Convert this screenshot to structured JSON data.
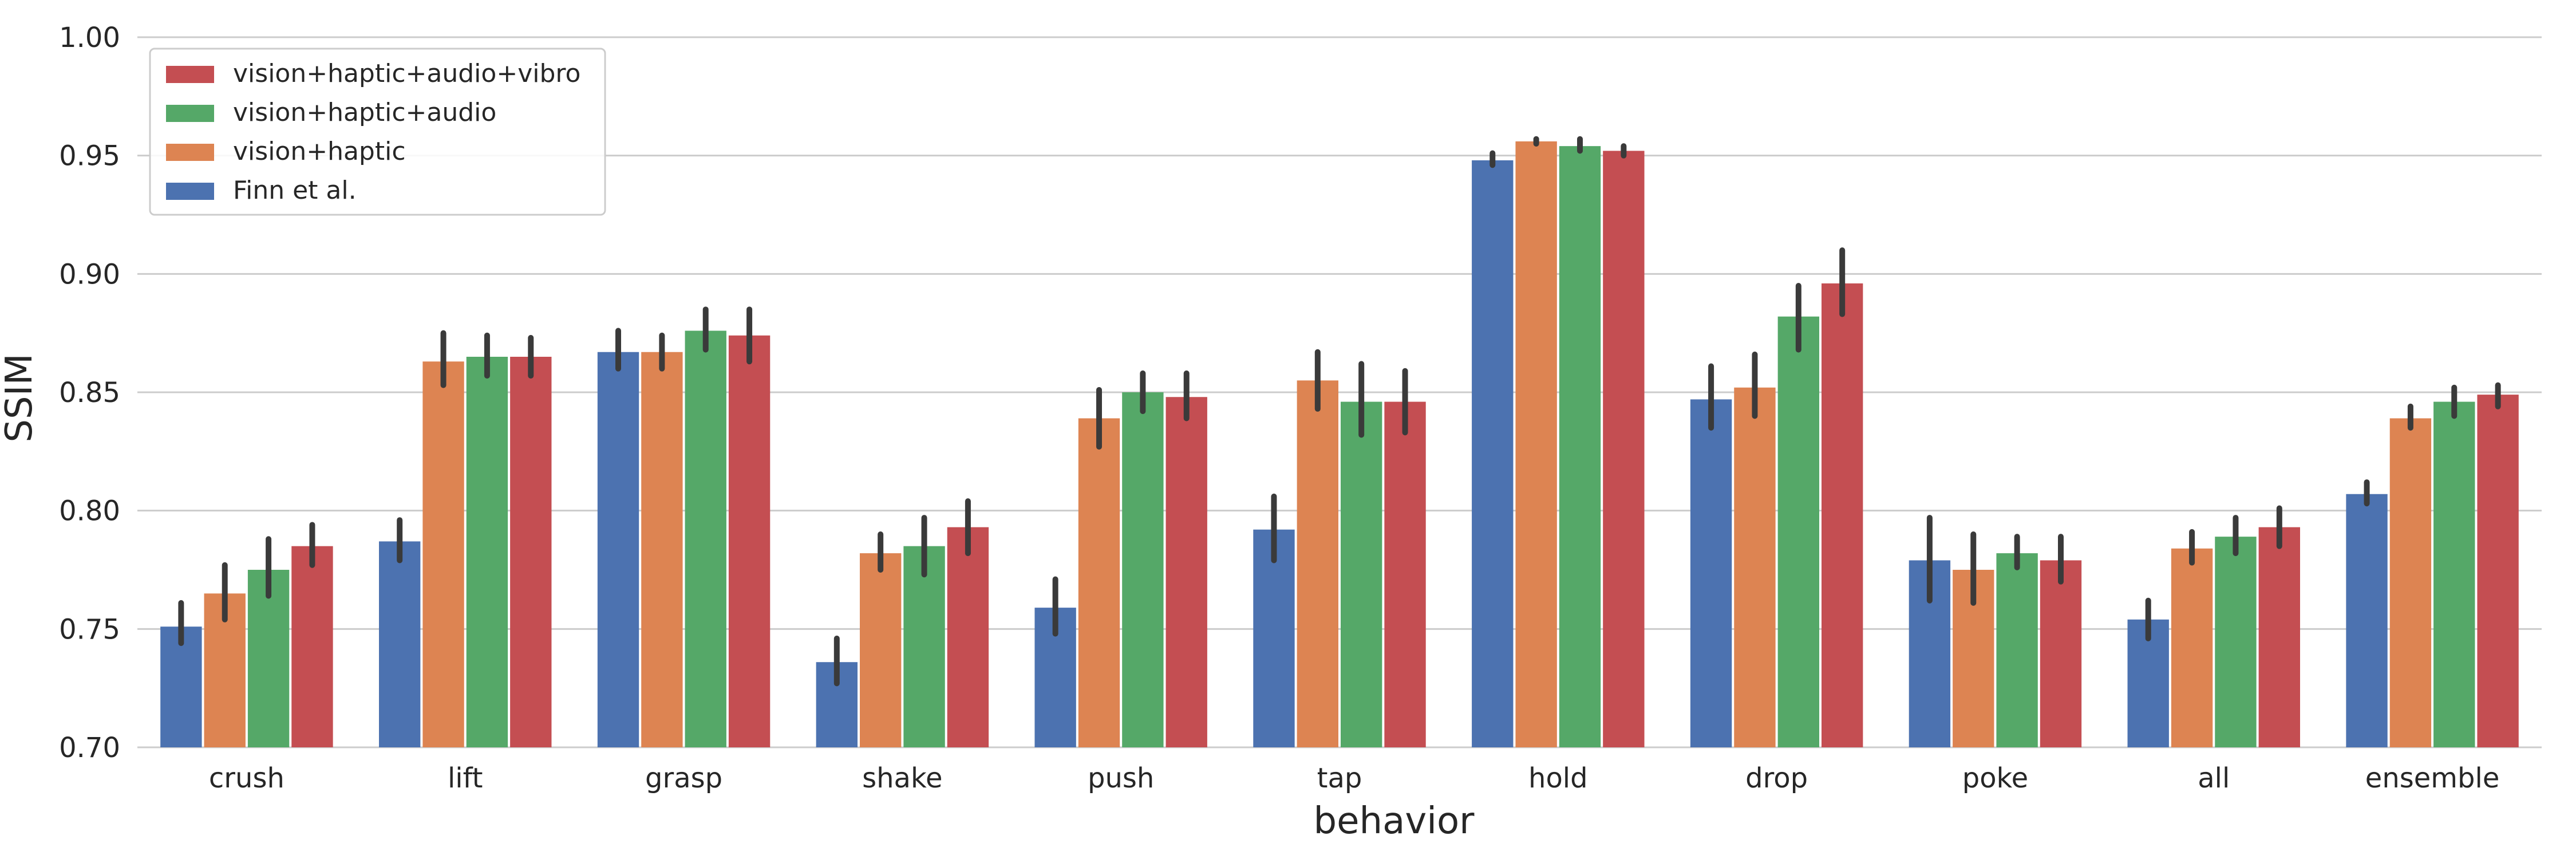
{
  "chart_data": {
    "type": "bar",
    "title": "",
    "xlabel": "behavior",
    "ylabel": "SSIM",
    "ylim": [
      0.7,
      1.0
    ],
    "yticks": [
      0.7,
      0.75,
      0.8,
      0.85,
      0.9,
      0.95,
      1.0
    ],
    "ytick_labels": [
      "0.70",
      "0.75",
      "0.80",
      "0.85",
      "0.90",
      "0.95",
      "1.00"
    ],
    "grid": "horizontal",
    "legend_position": "top-left",
    "categories": [
      "crush",
      "lift",
      "grasp",
      "shake",
      "push",
      "tap",
      "hold",
      "drop",
      "poke",
      "all",
      "ensemble"
    ],
    "series": [
      {
        "name": "Finn et al.",
        "color": "#4c72b0",
        "values": [
          0.751,
          0.787,
          0.867,
          0.736,
          0.759,
          0.792,
          0.948,
          0.847,
          0.779,
          0.754,
          0.807
        ],
        "error_low": [
          0.744,
          0.779,
          0.86,
          0.727,
          0.748,
          0.779,
          0.946,
          0.835,
          0.762,
          0.746,
          0.803
        ],
        "error_high": [
          0.761,
          0.796,
          0.876,
          0.746,
          0.771,
          0.806,
          0.951,
          0.861,
          0.797,
          0.762,
          0.812
        ]
      },
      {
        "name": "vision+haptic",
        "color": "#dd8452",
        "values": [
          0.765,
          0.863,
          0.867,
          0.782,
          0.839,
          0.855,
          0.956,
          0.852,
          0.775,
          0.784,
          0.839
        ],
        "error_low": [
          0.754,
          0.853,
          0.86,
          0.775,
          0.827,
          0.843,
          0.955,
          0.84,
          0.761,
          0.778,
          0.835
        ],
        "error_high": [
          0.777,
          0.875,
          0.874,
          0.79,
          0.851,
          0.867,
          0.957,
          0.866,
          0.79,
          0.791,
          0.844
        ]
      },
      {
        "name": "vision+haptic+audio",
        "color": "#55a868",
        "values": [
          0.775,
          0.865,
          0.876,
          0.785,
          0.85,
          0.846,
          0.954,
          0.882,
          0.782,
          0.789,
          0.846
        ],
        "error_low": [
          0.764,
          0.857,
          0.868,
          0.773,
          0.842,
          0.832,
          0.952,
          0.868,
          0.776,
          0.782,
          0.84
        ],
        "error_high": [
          0.788,
          0.874,
          0.885,
          0.797,
          0.858,
          0.862,
          0.957,
          0.895,
          0.789,
          0.797,
          0.852
        ]
      },
      {
        "name": "vision+haptic+audio+vibro",
        "color": "#c44e52",
        "values": [
          0.785,
          0.865,
          0.874,
          0.793,
          0.848,
          0.846,
          0.952,
          0.896,
          0.779,
          0.793,
          0.849
        ],
        "error_low": [
          0.777,
          0.857,
          0.863,
          0.782,
          0.839,
          0.833,
          0.95,
          0.883,
          0.77,
          0.785,
          0.844
        ],
        "error_high": [
          0.794,
          0.873,
          0.885,
          0.804,
          0.858,
          0.859,
          0.954,
          0.91,
          0.789,
          0.801,
          0.853
        ]
      }
    ],
    "legend_order": [
      "vision+haptic+audio+vibro",
      "vision+haptic+audio",
      "vision+haptic",
      "Finn et al."
    ]
  }
}
